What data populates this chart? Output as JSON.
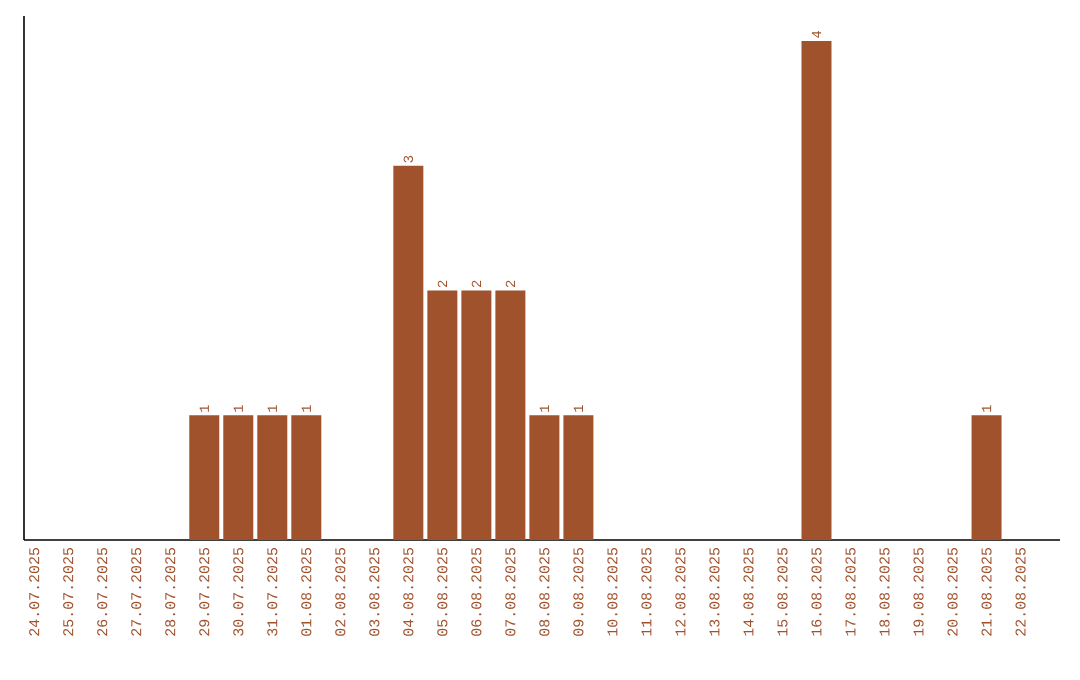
{
  "chart_data": {
    "type": "bar",
    "categories": [
      "24.07.2025",
      "25.07.2025",
      "26.07.2025",
      "27.07.2025",
      "28.07.2025",
      "29.07.2025",
      "30.07.2025",
      "31.07.2025",
      "01.08.2025",
      "02.08.2025",
      "03.08.2025",
      "04.08.2025",
      "05.08.2025",
      "06.08.2025",
      "07.08.2025",
      "08.08.2025",
      "09.08.2025",
      "10.08.2025",
      "11.08.2025",
      "12.08.2025",
      "13.08.2025",
      "14.08.2025",
      "15.08.2025",
      "16.08.2025",
      "17.08.2025",
      "18.08.2025",
      "19.08.2025",
      "20.08.2025",
      "21.08.2025",
      "22.08.2025"
    ],
    "values": [
      0,
      0,
      0,
      0,
      0,
      1,
      1,
      1,
      1,
      0,
      0,
      3,
      2,
      2,
      2,
      1,
      1,
      0,
      0,
      0,
      0,
      0,
      0,
      4,
      0,
      0,
      0,
      0,
      1,
      0
    ],
    "value_labels": [
      null,
      null,
      null,
      null,
      null,
      "1",
      "1",
      "1",
      "1",
      null,
      null,
      "3",
      "2",
      "2",
      "2",
      "1",
      "1",
      null,
      null,
      null,
      null,
      null,
      null,
      "4",
      null,
      null,
      null,
      null,
      "1",
      null
    ],
    "color": "#a0522d",
    "tick_labels": "x"
  }
}
